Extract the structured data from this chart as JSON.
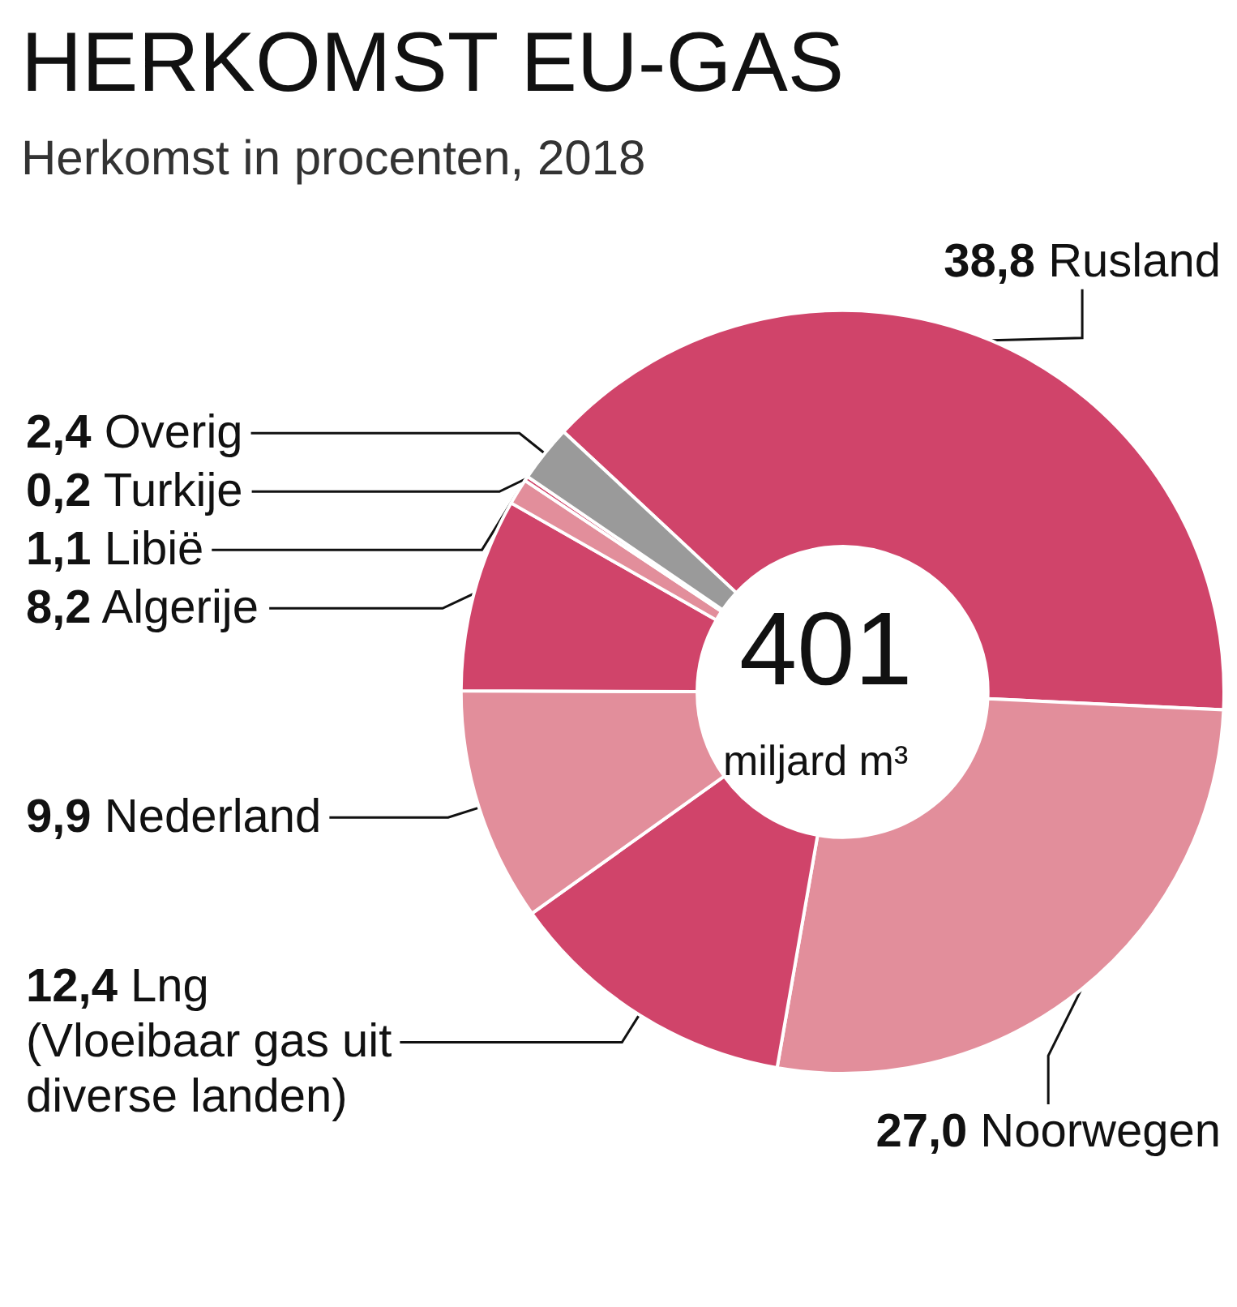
{
  "chart_data": {
    "type": "donut",
    "title": "HERKOMST EU-GAS",
    "subtitle": "Herkomst in procenten, 2018",
    "categories": [
      "Rusland",
      "Noorwegen",
      "Lng (Vloeibaar gas uit diverse landen)",
      "Nederland",
      "Algerije",
      "Libië",
      "Turkije",
      "Overig"
    ],
    "values": [
      38.8,
      27.0,
      12.4,
      9.9,
      8.2,
      1.1,
      0.2,
      2.4
    ],
    "value_labels": [
      "38,8",
      "27,0",
      "12,4",
      "9,9",
      "8,2",
      "1,1",
      "0,2",
      "2,4"
    ],
    "colors": [
      "#d0446a",
      "#e28e9b",
      "#d0446a",
      "#e28e9b",
      "#d0446a",
      "#e28e9b",
      "#d0446a",
      "#9a9a9a"
    ],
    "annotations": [
      "401",
      "miljard m³"
    ],
    "legend": false
  }
}
